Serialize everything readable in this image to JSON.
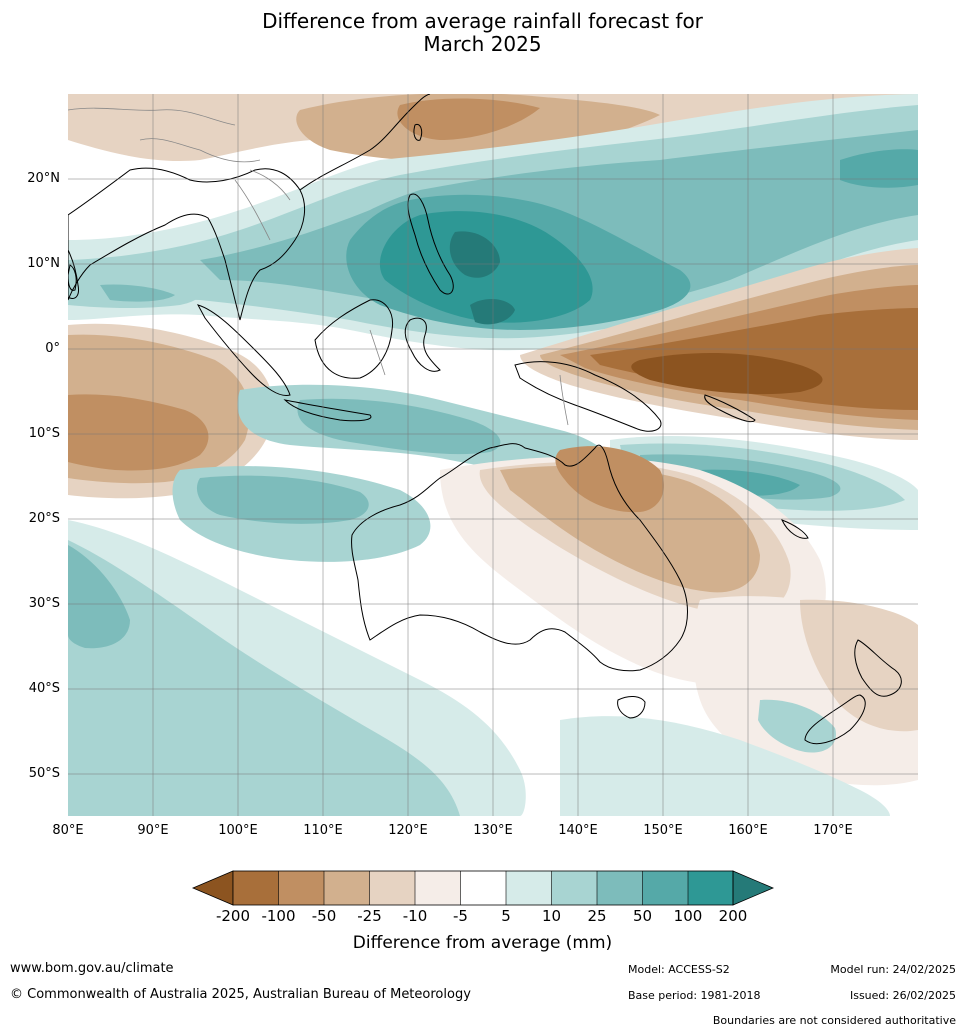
{
  "title": {
    "line1": "Difference from average rainfall forecast for",
    "line2": "March 2025"
  },
  "map": {
    "lat_labels": [
      "20°N",
      "10°N",
      "0°",
      "10°S",
      "20°S",
      "30°S",
      "40°S",
      "50°S"
    ],
    "lon_labels": [
      "80°E",
      "90°E",
      "100°E",
      "110°E",
      "120°E",
      "130°E",
      "140°E",
      "150°E",
      "160°E",
      "170°E"
    ]
  },
  "legend": {
    "title": "Difference from average (mm)",
    "labels": [
      "-200",
      "-100",
      "-50",
      "-25",
      "-10",
      "-5",
      "5",
      "10",
      "25",
      "50",
      "100",
      "200"
    ],
    "colors": [
      "#8c5420",
      "#a86f3a",
      "#c08f62",
      "#d2b08e",
      "#e6d3c2",
      "#f5ede8",
      "#ffffff",
      "#d6ebe9",
      "#a8d4d2",
      "#7dbcbb",
      "#55a9a8",
      "#2e9895",
      "#257a78"
    ]
  },
  "footer": {
    "website": "www.bom.gov.au/climate",
    "copyright": "© Commonwealth of Australia 2025, Australian Bureau of Meteorology",
    "model": "Model: ACCESS-S2",
    "base_period": "Base period: 1981-2018",
    "model_run": "Model run: 24/02/2025",
    "issued": "Issued: 26/02/2025",
    "disclaimer": "Boundaries are not considered authoritative"
  }
}
